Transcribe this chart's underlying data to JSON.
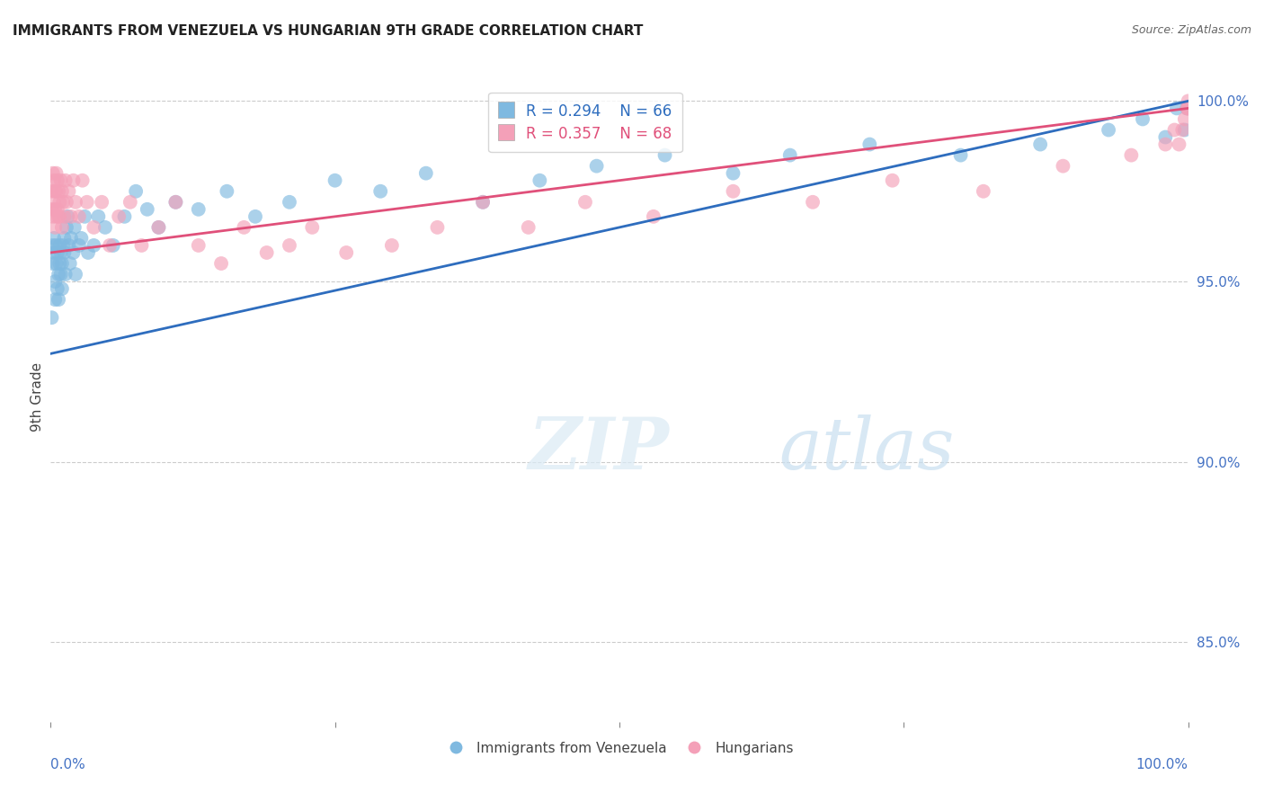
{
  "title": "IMMIGRANTS FROM VENEZUELA VS HUNGARIAN 9TH GRADE CORRELATION CHART",
  "source": "Source: ZipAtlas.com",
  "ylabel": "9th Grade",
  "watermark_zip": "ZIP",
  "watermark_atlas": "atlas",
  "legend1_label": "Immigrants from Venezuela",
  "legend2_label": "Hungarians",
  "R_blue": 0.294,
  "N_blue": 66,
  "R_pink": 0.357,
  "N_pink": 68,
  "color_blue": "#7fb9e0",
  "color_pink": "#f4a0b8",
  "color_blue_line": "#2e6dbe",
  "color_pink_line": "#e0507a",
  "ytick_labels": [
    "85.0%",
    "90.0%",
    "95.0%",
    "100.0%"
  ],
  "ytick_values": [
    0.85,
    0.9,
    0.95,
    1.0
  ],
  "xlim": [
    0.0,
    1.0
  ],
  "ylim": [
    0.828,
    1.008
  ],
  "blue_x": [
    0.001,
    0.002,
    0.002,
    0.003,
    0.003,
    0.004,
    0.004,
    0.005,
    0.005,
    0.006,
    0.006,
    0.007,
    0.007,
    0.008,
    0.008,
    0.009,
    0.009,
    0.01,
    0.01,
    0.011,
    0.012,
    0.012,
    0.013,
    0.014,
    0.015,
    0.016,
    0.017,
    0.018,
    0.02,
    0.021,
    0.022,
    0.025,
    0.027,
    0.03,
    0.033,
    0.038,
    0.042,
    0.048,
    0.055,
    0.065,
    0.075,
    0.085,
    0.095,
    0.11,
    0.13,
    0.155,
    0.18,
    0.21,
    0.25,
    0.29,
    0.33,
    0.38,
    0.43,
    0.48,
    0.54,
    0.6,
    0.65,
    0.72,
    0.8,
    0.87,
    0.93,
    0.96,
    0.98,
    0.99,
    0.997,
    0.999
  ],
  "blue_y": [
    0.94,
    0.955,
    0.96,
    0.958,
    0.962,
    0.95,
    0.945,
    0.96,
    0.955,
    0.948,
    0.958,
    0.952,
    0.945,
    0.96,
    0.955,
    0.952,
    0.958,
    0.948,
    0.955,
    0.96,
    0.962,
    0.958,
    0.952,
    0.965,
    0.968,
    0.96,
    0.955,
    0.962,
    0.958,
    0.965,
    0.952,
    0.96,
    0.962,
    0.968,
    0.958,
    0.96,
    0.968,
    0.965,
    0.96,
    0.968,
    0.975,
    0.97,
    0.965,
    0.972,
    0.97,
    0.975,
    0.968,
    0.972,
    0.978,
    0.975,
    0.98,
    0.972,
    0.978,
    0.982,
    0.985,
    0.98,
    0.985,
    0.988,
    0.985,
    0.988,
    0.992,
    0.995,
    0.99,
    0.998,
    0.992,
    0.998
  ],
  "pink_x": [
    0.001,
    0.001,
    0.002,
    0.002,
    0.003,
    0.003,
    0.004,
    0.004,
    0.004,
    0.005,
    0.005,
    0.005,
    0.006,
    0.006,
    0.007,
    0.007,
    0.008,
    0.008,
    0.009,
    0.01,
    0.01,
    0.011,
    0.012,
    0.013,
    0.014,
    0.016,
    0.018,
    0.02,
    0.022,
    0.025,
    0.028,
    0.032,
    0.038,
    0.045,
    0.052,
    0.06,
    0.07,
    0.08,
    0.095,
    0.11,
    0.13,
    0.15,
    0.17,
    0.19,
    0.21,
    0.23,
    0.26,
    0.3,
    0.34,
    0.38,
    0.42,
    0.47,
    0.53,
    0.6,
    0.67,
    0.74,
    0.82,
    0.89,
    0.95,
    0.98,
    0.988,
    0.992,
    0.995,
    0.997,
    0.999,
    1.0,
    1.0,
    1.0
  ],
  "pink_y": [
    0.97,
    0.975,
    0.968,
    0.98,
    0.972,
    0.978,
    0.965,
    0.975,
    0.97,
    0.968,
    0.975,
    0.98,
    0.97,
    0.978,
    0.968,
    0.975,
    0.972,
    0.968,
    0.978,
    0.965,
    0.975,
    0.972,
    0.968,
    0.978,
    0.972,
    0.975,
    0.968,
    0.978,
    0.972,
    0.968,
    0.978,
    0.972,
    0.965,
    0.972,
    0.96,
    0.968,
    0.972,
    0.96,
    0.965,
    0.972,
    0.96,
    0.955,
    0.965,
    0.958,
    0.96,
    0.965,
    0.958,
    0.96,
    0.965,
    0.972,
    0.965,
    0.972,
    0.968,
    0.975,
    0.972,
    0.978,
    0.975,
    0.982,
    0.985,
    0.988,
    0.992,
    0.988,
    0.992,
    0.995,
    0.998,
    0.998,
    0.998,
    1.0
  ]
}
